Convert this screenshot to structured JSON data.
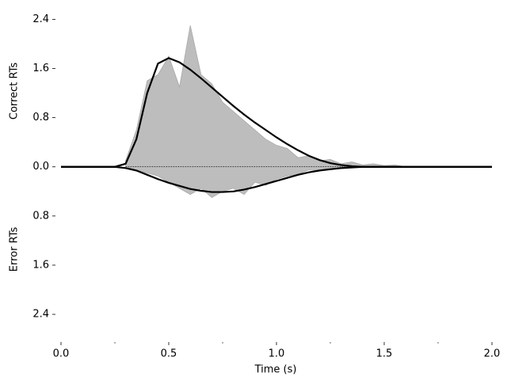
{
  "chart_data": {
    "type": "mirrored-density",
    "xlabel": "Time (s)",
    "ylabel_top": "Correct RTs",
    "ylabel_bottom": "Error RTs",
    "xlim": [
      0,
      2.0
    ],
    "ylim": [
      -2.85,
      2.65
    ],
    "xticks": [
      {
        "value": 0,
        "label": "0.0"
      },
      0.5,
      {
        "value": 1,
        "label": "1.0"
      },
      1.5,
      {
        "value": 2,
        "label": "2.0"
      }
    ],
    "xminorticks": [
      0.25,
      0.75,
      1.25,
      1.75
    ],
    "yticks": [
      {
        "value": 2.4,
        "label": "2.4"
      },
      {
        "value": 1.6,
        "label": "1.6"
      },
      {
        "value": 0.8,
        "label": "0.8"
      },
      {
        "value": 0,
        "label": "0.0"
      },
      {
        "value": -0.8,
        "label": "0.8"
      },
      {
        "value": -1.6,
        "label": "1.6"
      },
      {
        "value": -2.4,
        "label": "2.4"
      }
    ],
    "series": [
      {
        "kind": "area",
        "color": "#bdbdbd",
        "x": [
          0.3,
          0.35,
          0.4,
          0.45,
          0.5,
          0.55,
          0.6,
          0.65,
          0.7,
          0.75,
          0.8,
          0.85,
          0.9,
          0.95,
          1.0,
          1.05,
          1.1,
          1.15,
          1.2,
          1.25,
          1.3,
          1.35,
          1.4,
          1.45,
          1.5,
          1.55,
          1.6
        ],
        "values": [
          0.1,
          0.6,
          1.4,
          1.5,
          1.8,
          1.3,
          2.3,
          1.5,
          1.35,
          1.05,
          0.9,
          0.75,
          0.6,
          0.45,
          0.35,
          0.3,
          0.15,
          0.18,
          0.1,
          0.12,
          0.05,
          0.08,
          0.03,
          0.05,
          0.02,
          0.03,
          0
        ]
      },
      {
        "kind": "area",
        "color": "#bdbdbd",
        "x": [
          0.3,
          0.35,
          0.4,
          0.45,
          0.5,
          0.55,
          0.6,
          0.65,
          0.7,
          0.75,
          0.8,
          0.85,
          0.9,
          0.95,
          1.0,
          1.05,
          1.1,
          1.15,
          1.2,
          1.25,
          1.3,
          1.35,
          1.4,
          1.45,
          1.5,
          1.55,
          1.6
        ],
        "values": [
          0,
          -0.05,
          -0.1,
          -0.15,
          -0.25,
          -0.35,
          -0.45,
          -0.35,
          -0.5,
          -0.4,
          -0.35,
          -0.45,
          -0.25,
          -0.3,
          -0.2,
          -0.15,
          -0.12,
          -0.05,
          -0.06,
          -0.02,
          -0.03,
          -0.01,
          0,
          -0.01,
          0,
          0,
          0
        ]
      },
      {
        "kind": "line",
        "color": "#000000",
        "x": [
          0,
          0.05,
          0.1,
          0.15,
          0.2,
          0.25,
          0.3,
          0.35,
          0.4,
          0.45,
          0.5,
          0.55,
          0.6,
          0.65,
          0.7,
          0.75,
          0.8,
          0.85,
          0.9,
          0.95,
          1.0,
          1.05,
          1.1,
          1.15,
          1.2,
          1.25,
          1.3,
          1.35,
          1.4,
          1.45,
          1.5,
          1.55,
          1.6,
          1.65,
          1.7,
          1.75,
          1.8,
          1.85,
          1.9,
          1.95,
          2.0
        ],
        "values": [
          0,
          0,
          0,
          0,
          0,
          0,
          0.05,
          0.45,
          1.2,
          1.68,
          1.77,
          1.7,
          1.58,
          1.44,
          1.29,
          1.14,
          0.99,
          0.85,
          0.72,
          0.6,
          0.48,
          0.37,
          0.27,
          0.18,
          0.11,
          0.06,
          0.03,
          0.01,
          0,
          0,
          0,
          0,
          0,
          0,
          0,
          0,
          0,
          0,
          0,
          0,
          0
        ]
      },
      {
        "kind": "line",
        "color": "#000000",
        "x": [
          0,
          0.05,
          0.1,
          0.15,
          0.2,
          0.25,
          0.3,
          0.35,
          0.4,
          0.45,
          0.5,
          0.55,
          0.6,
          0.65,
          0.7,
          0.75,
          0.8,
          0.85,
          0.9,
          0.95,
          1.0,
          1.05,
          1.1,
          1.15,
          1.2,
          1.25,
          1.3,
          1.35,
          1.4,
          1.45,
          1.5,
          1.55,
          1.6,
          1.65,
          1.7,
          1.75,
          1.8,
          1.85,
          1.9,
          1.95,
          2.0
        ],
        "values": [
          0,
          0,
          0,
          0,
          0,
          0,
          -0.02,
          -0.06,
          -0.13,
          -0.2,
          -0.26,
          -0.31,
          -0.36,
          -0.39,
          -0.41,
          -0.41,
          -0.4,
          -0.37,
          -0.33,
          -0.28,
          -0.23,
          -0.18,
          -0.13,
          -0.09,
          -0.06,
          -0.04,
          -0.02,
          -0.01,
          0,
          0,
          0,
          0,
          0,
          0,
          0,
          0,
          0,
          0,
          0,
          0,
          0
        ]
      }
    ]
  }
}
